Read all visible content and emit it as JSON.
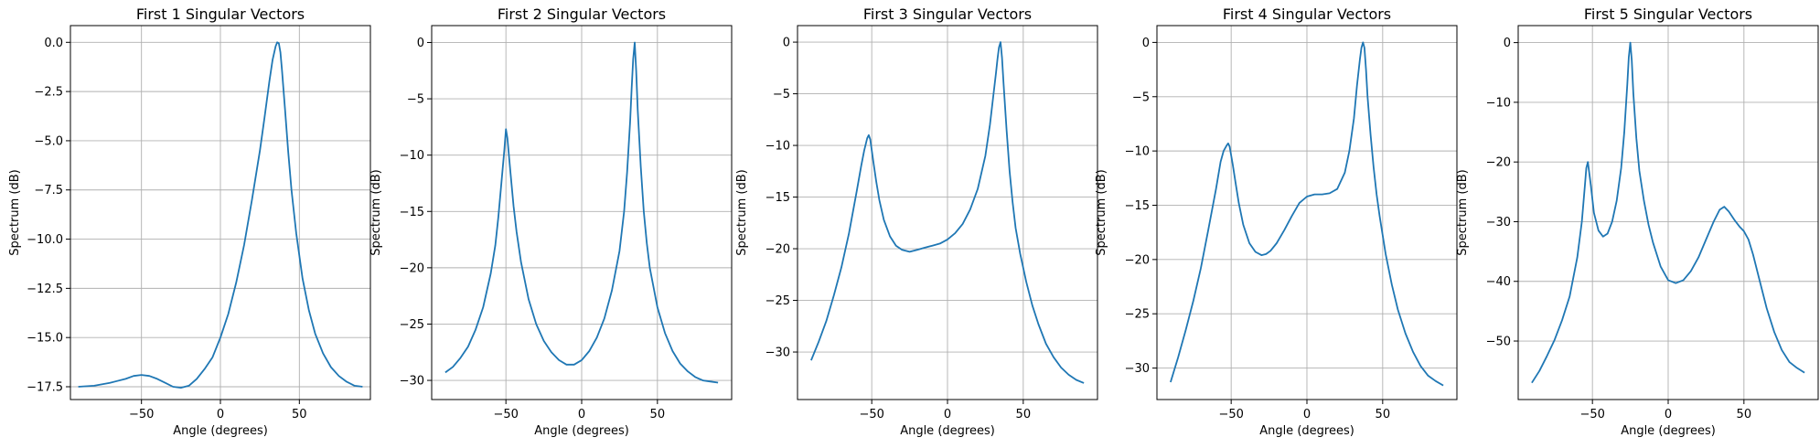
{
  "chart_data": [
    {
      "type": "line",
      "title": "First 1 Singular Vectors",
      "xlabel": "Angle (degrees)",
      "ylabel": "Spectrum (dB)",
      "xlim": [
        -95,
        95
      ],
      "ylim": [
        -18.15,
        0.85
      ],
      "xticks": [
        -50,
        0,
        50
      ],
      "xtick_labels": [
        "−50",
        "0",
        "50"
      ],
      "yticks": [
        0.0,
        -2.5,
        -5.0,
        -7.5,
        -10.0,
        -12.5,
        -15.0,
        -17.5
      ],
      "ytick_labels": [
        "0.0",
        "−2.5",
        "−5.0",
        "−7.5",
        "−10.0",
        "−12.5",
        "−15.0",
        "−17.5"
      ],
      "grid": true,
      "color": "#1f77b4",
      "series": [
        {
          "x": [
            -90,
            -80,
            -70,
            -60,
            -55,
            -50,
            -45,
            -40,
            -35,
            -30,
            -25,
            -20,
            -15,
            -10,
            -5,
            0,
            5,
            10,
            15,
            20,
            25,
            28,
            31,
            33,
            35,
            36,
            37,
            38,
            39,
            41,
            43,
            45,
            48,
            52,
            56,
            60,
            65,
            70,
            75,
            80,
            85,
            90
          ],
          "y": [
            -17.5,
            -17.45,
            -17.3,
            -17.1,
            -16.95,
            -16.9,
            -16.95,
            -17.1,
            -17.3,
            -17.5,
            -17.55,
            -17.45,
            -17.1,
            -16.6,
            -16.0,
            -15.0,
            -13.8,
            -12.2,
            -10.3,
            -8.0,
            -5.5,
            -3.8,
            -2.0,
            -0.9,
            -0.2,
            0.0,
            -0.05,
            -0.5,
            -1.4,
            -3.5,
            -5.6,
            -7.5,
            -9.7,
            -12.0,
            -13.6,
            -14.8,
            -15.8,
            -16.5,
            -16.95,
            -17.25,
            -17.45,
            -17.5
          ]
        }
      ]
    },
    {
      "type": "line",
      "title": "First 2 Singular Vectors",
      "xlabel": "Angle (degrees)",
      "ylabel": "Spectrum (dB)",
      "xlim": [
        -99,
        99
      ],
      "ylim": [
        -31.7,
        1.5
      ],
      "xticks": [
        -50,
        0,
        50
      ],
      "xtick_labels": [
        "−50",
        "0",
        "50"
      ],
      "yticks": [
        0,
        -5,
        -10,
        -15,
        -20,
        -25,
        -30
      ],
      "ytick_labels": [
        "0",
        "−5",
        "−10",
        "−15",
        "−20",
        "−25",
        "−30"
      ],
      "grid": true,
      "color": "#1f77b4",
      "series": [
        {
          "x": [
            -90,
            -85,
            -80,
            -75,
            -70,
            -65,
            -60,
            -57,
            -55,
            -53,
            -51,
            -50,
            -49,
            -47,
            -45,
            -43,
            -40,
            -35,
            -30,
            -25,
            -20,
            -15,
            -10,
            -5,
            0,
            5,
            10,
            15,
            20,
            25,
            28,
            30,
            32,
            33,
            34,
            35,
            36,
            37,
            39,
            41,
            43,
            45,
            50,
            55,
            60,
            65,
            70,
            75,
            80,
            85,
            90
          ],
          "y": [
            -29.3,
            -28.8,
            -28.0,
            -27.0,
            -25.5,
            -23.5,
            -20.5,
            -18.0,
            -15.5,
            -12.5,
            -9.5,
            -7.7,
            -8.5,
            -11.5,
            -14.5,
            -16.8,
            -19.5,
            -22.8,
            -25.0,
            -26.5,
            -27.5,
            -28.2,
            -28.6,
            -28.6,
            -28.2,
            -27.4,
            -26.2,
            -24.5,
            -22.0,
            -18.5,
            -15.0,
            -11.5,
            -7.0,
            -4.0,
            -1.5,
            0.0,
            -2.5,
            -6.0,
            -11.0,
            -15.0,
            -17.8,
            -20.0,
            -23.5,
            -25.8,
            -27.4,
            -28.5,
            -29.2,
            -29.7,
            -30.0,
            -30.1,
            -30.2
          ]
        }
      ]
    },
    {
      "type": "line",
      "title": "First 3 Singular Vectors",
      "xlabel": "Angle (degrees)",
      "ylabel": "Spectrum (dB)",
      "xlim": [
        -99,
        99
      ],
      "ylim": [
        -34.6,
        1.6
      ],
      "xticks": [
        -50,
        0,
        50
      ],
      "xtick_labels": [
        "−50",
        "0",
        "50"
      ],
      "yticks": [
        0,
        -5,
        -10,
        -15,
        -20,
        -25,
        -30
      ],
      "ytick_labels": [
        "0",
        "−5",
        "−10",
        "−15",
        "−20",
        "−25",
        "−30"
      ],
      "grid": true,
      "color": "#1f77b4",
      "series": [
        {
          "x": [
            -90,
            -85,
            -80,
            -75,
            -70,
            -65,
            -60,
            -57,
            -55,
            -53,
            -52,
            -51,
            -49,
            -47,
            -45,
            -42,
            -38,
            -34,
            -30,
            -25,
            -20,
            -15,
            -10,
            -5,
            0,
            5,
            10,
            15,
            20,
            25,
            28,
            30,
            32,
            33,
            34,
            35,
            36,
            37,
            39,
            41,
            43,
            45,
            48,
            52,
            56,
            60,
            65,
            70,
            75,
            80,
            85,
            90
          ],
          "y": [
            -30.8,
            -29.0,
            -27.0,
            -24.5,
            -21.8,
            -18.5,
            -14.5,
            -12.0,
            -10.5,
            -9.3,
            -9.0,
            -9.4,
            -11.5,
            -13.5,
            -15.3,
            -17.2,
            -18.8,
            -19.7,
            -20.1,
            -20.3,
            -20.1,
            -19.9,
            -19.7,
            -19.5,
            -19.1,
            -18.5,
            -17.6,
            -16.2,
            -14.2,
            -11.0,
            -8.0,
            -5.5,
            -3.0,
            -1.6,
            -0.5,
            0.0,
            -1.5,
            -4.0,
            -8.5,
            -12.5,
            -15.5,
            -18.0,
            -20.5,
            -23.2,
            -25.5,
            -27.3,
            -29.2,
            -30.5,
            -31.5,
            -32.2,
            -32.7,
            -33.0
          ]
        }
      ]
    },
    {
      "type": "line",
      "title": "First 4 Singular Vectors",
      "xlabel": "Angle (degrees)",
      "ylabel": "Spectrum (dB)",
      "xlim": [
        -99,
        99
      ],
      "ylim": [
        -32.9,
        1.55
      ],
      "xticks": [
        -50,
        0,
        50
      ],
      "xtick_labels": [
        "−50",
        "0",
        "50"
      ],
      "yticks": [
        0,
        -5,
        -10,
        -15,
        -20,
        -25,
        -30
      ],
      "ytick_labels": [
        "0",
        "−5",
        "−10",
        "−15",
        "−20",
        "−25",
        "−30"
      ],
      "grid": true,
      "color": "#1f77b4",
      "series": [
        {
          "x": [
            -90,
            -85,
            -80,
            -75,
            -70,
            -65,
            -60,
            -57,
            -55,
            -53,
            -52,
            -51,
            -49,
            -47,
            -45,
            -42,
            -38,
            -34,
            -30,
            -27,
            -24,
            -20,
            -15,
            -10,
            -5,
            0,
            5,
            10,
            15,
            20,
            25,
            28,
            31,
            33,
            35,
            36,
            37,
            38,
            39,
            40,
            42,
            44,
            46,
            48,
            52,
            56,
            60,
            65,
            70,
            75,
            80,
            85,
            90
          ],
          "y": [
            -31.3,
            -29.0,
            -26.5,
            -23.8,
            -20.8,
            -17.2,
            -13.5,
            -11.0,
            -10.0,
            -9.5,
            -9.3,
            -9.6,
            -11.2,
            -13.0,
            -14.8,
            -16.8,
            -18.5,
            -19.3,
            -19.6,
            -19.5,
            -19.2,
            -18.5,
            -17.3,
            -16.0,
            -14.8,
            -14.2,
            -14.0,
            -14.0,
            -13.9,
            -13.5,
            -12.0,
            -10.0,
            -7.0,
            -4.0,
            -1.5,
            -0.5,
            0.0,
            -0.5,
            -2.5,
            -5.0,
            -8.5,
            -11.5,
            -14.0,
            -16.0,
            -19.5,
            -22.3,
            -24.6,
            -26.8,
            -28.5,
            -29.8,
            -30.7,
            -31.2,
            -31.6
          ]
        }
      ]
    },
    {
      "type": "line",
      "title": "First 5 Singular Vectors",
      "xlabel": "Angle (degrees)",
      "ylabel": "Spectrum (dB)",
      "xlim": [
        -99,
        99
      ],
      "ylim": [
        -59.8,
        2.85
      ],
      "xticks": [
        -50,
        0,
        50
      ],
      "xtick_labels": [
        "−50",
        "0",
        "50"
      ],
      "yticks": [
        0,
        -10,
        -20,
        -30,
        -40,
        -50
      ],
      "ytick_labels": [
        "0",
        "−10",
        "−20",
        "−30",
        "−40",
        "−50"
      ],
      "grid": true,
      "color": "#1f77b4",
      "series": [
        {
          "x": [
            -90,
            -85,
            -80,
            -75,
            -70,
            -65,
            -60,
            -57,
            -55,
            -54,
            -53,
            -51,
            -49,
            -46,
            -43,
            -40,
            -37,
            -34,
            -31,
            -29,
            -27,
            -26,
            -25,
            -24,
            -23,
            -21,
            -19,
            -16,
            -13,
            -10,
            -5,
            0,
            5,
            10,
            15,
            20,
            25,
            30,
            34,
            37,
            40,
            44,
            47,
            50,
            53,
            56,
            60,
            65,
            70,
            75,
            80,
            85,
            90
          ],
          "y": [
            -57.0,
            -55.0,
            -52.5,
            -49.8,
            -46.5,
            -42.5,
            -36.0,
            -30.0,
            -24.0,
            -21.0,
            -20.0,
            -24.0,
            -28.5,
            -31.5,
            -32.5,
            -32.0,
            -30.0,
            -26.5,
            -21.0,
            -15.0,
            -7.0,
            -2.5,
            0.0,
            -3.0,
            -8.5,
            -16.0,
            -21.5,
            -26.5,
            -30.5,
            -33.5,
            -37.5,
            -39.8,
            -40.3,
            -39.8,
            -38.3,
            -36.0,
            -33.0,
            -30.0,
            -28.0,
            -27.5,
            -28.3,
            -29.8,
            -30.8,
            -31.6,
            -33.0,
            -35.5,
            -39.5,
            -44.5,
            -48.5,
            -51.5,
            -53.5,
            -54.5,
            -55.3
          ]
        }
      ]
    }
  ]
}
